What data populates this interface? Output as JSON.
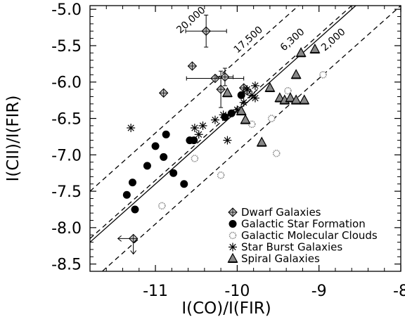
{
  "chart_data": {
    "type": "scatter",
    "xlabel": "I(CO)/I(FIR)",
    "ylabel": "I(CII)/I(FIR)",
    "xlim": [
      -11.8,
      -8.0
    ],
    "ylim": [
      -8.6,
      -4.95
    ],
    "xticks": [
      -11,
      -10,
      -9,
      -8
    ],
    "xtick_labels": [
      "-11",
      "-10",
      "-9",
      "-8"
    ],
    "yticks": [
      -8.5,
      -8.0,
      -7.5,
      -7.0,
      -6.5,
      -6.0,
      -5.5,
      -5.0
    ],
    "ytick_labels": [
      "-8.5",
      "-8.0",
      "-7.5",
      "-7.0",
      "-6.5",
      "-6.0",
      "-5.5",
      "-5.0"
    ],
    "grid": false,
    "legend_position": "bottom-right",
    "lines": [
      {
        "label": "20,000",
        "slope": 1,
        "intercept": 4.3,
        "style": "dashed",
        "label_at": [
          -10.54,
          -5.18
        ]
      },
      {
        "label": "17,500",
        "slope": 1,
        "intercept": 3.65,
        "style": "dashed",
        "label_at": [
          -9.84,
          -5.45
        ]
      },
      {
        "label": "6,300",
        "slope": 1,
        "intercept": 3.6,
        "style": "solid",
        "label_at": [
          -9.3,
          -5.45
        ]
      },
      {
        "label": "2,000",
        "slope": 1,
        "intercept": 3.05,
        "style": "dashed",
        "label_at": [
          -8.8,
          -5.45
        ]
      }
    ],
    "series": [
      {
        "name": "Dwarf Galaxies",
        "marker": "diamond",
        "points": [
          {
            "x": -10.55,
            "y": -5.78
          },
          {
            "x": -10.38,
            "y": -5.3,
            "xerr": 0.25,
            "yerr": 0.22
          },
          {
            "x": -10.9,
            "y": -6.15
          },
          {
            "x": -10.27,
            "y": -5.95,
            "xerr": 0.35
          },
          {
            "x": -10.2,
            "y": -6.1,
            "yerr": 0.25
          },
          {
            "x": -10.15,
            "y": -5.93,
            "xerr": 0.1,
            "yerr": 0.12
          },
          {
            "x": -9.92,
            "y": -6.08
          },
          {
            "x": -9.88,
            "y": -6.12
          },
          {
            "x": -11.27,
            "y": -8.15,
            "upper_limit_x": true,
            "upper_limit_y": true
          }
        ]
      },
      {
        "name": "Galactic Star Formation",
        "marker": "circle",
        "points": [
          {
            "x": -11.35,
            "y": -7.55
          },
          {
            "x": -11.28,
            "y": -7.38
          },
          {
            "x": -11.25,
            "y": -7.75
          },
          {
            "x": -11.1,
            "y": -7.15
          },
          {
            "x": -11.0,
            "y": -6.88
          },
          {
            "x": -10.9,
            "y": -7.03
          },
          {
            "x": -10.87,
            "y": -6.72
          },
          {
            "x": -10.78,
            "y": -7.25
          },
          {
            "x": -10.65,
            "y": -7.4
          },
          {
            "x": -10.58,
            "y": -6.8
          },
          {
            "x": -10.53,
            "y": -6.8
          },
          {
            "x": -10.15,
            "y": -6.48
          },
          {
            "x": -10.07,
            "y": -6.43
          },
          {
            "x": -9.95,
            "y": -6.18
          }
        ]
      },
      {
        "name": "Galactic Molecular Clouds",
        "marker": "dotted-circle",
        "points": [
          {
            "x": -10.92,
            "y": -7.7
          },
          {
            "x": -10.52,
            "y": -7.05
          },
          {
            "x": -10.2,
            "y": -7.28
          },
          {
            "x": -9.82,
            "y": -6.58
          },
          {
            "x": -9.58,
            "y": -6.5
          },
          {
            "x": -9.52,
            "y": -6.98
          },
          {
            "x": -9.38,
            "y": -6.12
          },
          {
            "x": -8.95,
            "y": -5.9
          }
        ]
      },
      {
        "name": "Star Burst Galaxies",
        "marker": "asterisk",
        "points": [
          {
            "x": -11.3,
            "y": -6.63
          },
          {
            "x": -10.52,
            "y": -6.63
          },
          {
            "x": -10.47,
            "y": -6.72
          },
          {
            "x": -10.42,
            "y": -6.6
          },
          {
            "x": -10.27,
            "y": -6.52
          },
          {
            "x": -10.17,
            "y": -6.45
          },
          {
            "x": -10.0,
            "y": -6.38
          },
          {
            "x": -9.92,
            "y": -6.28
          },
          {
            "x": -9.82,
            "y": -6.18
          },
          {
            "x": -9.88,
            "y": -6.1
          },
          {
            "x": -9.78,
            "y": -6.22
          },
          {
            "x": -9.78,
            "y": -6.05
          },
          {
            "x": -10.12,
            "y": -6.8
          }
        ]
      },
      {
        "name": "Spiral Galaxies",
        "marker": "triangle",
        "points": [
          {
            "x": -10.12,
            "y": -6.15
          },
          {
            "x": -9.95,
            "y": -6.4
          },
          {
            "x": -9.9,
            "y": -6.52
          },
          {
            "x": -9.7,
            "y": -6.83
          },
          {
            "x": -9.6,
            "y": -6.08
          },
          {
            "x": -9.48,
            "y": -6.22
          },
          {
            "x": -9.42,
            "y": -6.25
          },
          {
            "x": -9.35,
            "y": -6.22
          },
          {
            "x": -9.28,
            "y": -5.9
          },
          {
            "x": -9.28,
            "y": -6.25
          },
          {
            "x": -9.22,
            "y": -5.6
          },
          {
            "x": -9.18,
            "y": -6.25
          },
          {
            "x": -9.05,
            "y": -5.55
          }
        ]
      }
    ]
  }
}
